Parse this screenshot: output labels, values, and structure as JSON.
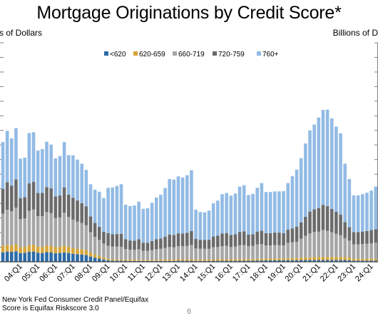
{
  "title": "Mortgage Originations by Credit Score*",
  "unit_left": "s of Dollars",
  "unit_right": "Billions of D",
  "footnotes": [
    "New York Fed Consumer Credit Panel/Equifax",
    "Score is Equifax Riskscore 3.0"
  ],
  "page_number": "6",
  "colors": {
    "lt620": "#2C6BA8",
    "s620_659": "#D4A53A",
    "s660_719": "#A6A6A6",
    "s720_759": "#6B6B6B",
    "s760plus": "#92BBE5",
    "axis": "#404040",
    "tick": "#808080"
  },
  "chart_data": {
    "type": "bar",
    "stacked": true,
    "xlabel": "",
    "ylabel": "",
    "ylim": [
      0,
      1500
    ],
    "grid": false,
    "legend_position": "top-center",
    "x_tick_labels": [
      "04:Q1",
      "05:Q1",
      "06:Q1",
      "07:Q1",
      "08:Q1",
      "09:Q1",
      "10:Q1",
      "11:Q1",
      "12:Q1",
      "13:Q1",
      "14:Q1",
      "15:Q1",
      "16:Q1",
      "17:Q1",
      "18:Q1",
      "19:Q1",
      "20:Q1",
      "21:Q1",
      "22:Q1",
      "23:Q1",
      "24:Q1"
    ],
    "categories": [
      "03:Q1",
      "03:Q2",
      "03:Q3",
      "03:Q4",
      "04:Q1",
      "04:Q2",
      "04:Q3",
      "04:Q4",
      "05:Q1",
      "05:Q2",
      "05:Q3",
      "05:Q4",
      "06:Q1",
      "06:Q2",
      "06:Q3",
      "06:Q4",
      "07:Q1",
      "07:Q2",
      "07:Q3",
      "07:Q4",
      "08:Q1",
      "08:Q2",
      "08:Q3",
      "08:Q4",
      "09:Q1",
      "09:Q2",
      "09:Q3",
      "09:Q4",
      "10:Q1",
      "10:Q2",
      "10:Q3",
      "10:Q4",
      "11:Q1",
      "11:Q2",
      "11:Q3",
      "11:Q4",
      "12:Q1",
      "12:Q2",
      "12:Q3",
      "12:Q4",
      "13:Q1",
      "13:Q2",
      "13:Q3",
      "13:Q4",
      "14:Q1",
      "14:Q2",
      "14:Q3",
      "14:Q4",
      "15:Q1",
      "15:Q2",
      "15:Q3",
      "15:Q4",
      "16:Q1",
      "16:Q2",
      "16:Q3",
      "16:Q4",
      "17:Q1",
      "17:Q2",
      "17:Q3",
      "17:Q4",
      "18:Q1",
      "18:Q2",
      "18:Q3",
      "18:Q4",
      "19:Q1",
      "19:Q2",
      "19:Q3",
      "19:Q4",
      "20:Q1",
      "20:Q2",
      "20:Q3",
      "20:Q4",
      "21:Q1",
      "21:Q2",
      "21:Q3",
      "21:Q4",
      "22:Q1",
      "22:Q2",
      "22:Q3",
      "22:Q4",
      "23:Q1",
      "23:Q2",
      "23:Q3",
      "23:Q4",
      "24:Q1",
      "24:Q2"
    ],
    "series": [
      {
        "name": "<620",
        "values": [
          65,
          70,
          68,
          72,
          60,
          62,
          68,
          70,
          62,
          60,
          66,
          64,
          58,
          60,
          64,
          60,
          55,
          52,
          50,
          46,
          36,
          28,
          22,
          16,
          10,
          8,
          8,
          7,
          7,
          6,
          6,
          6,
          5,
          5,
          6,
          6,
          6,
          6,
          6,
          6,
          7,
          7,
          7,
          7,
          6,
          6,
          6,
          6,
          7,
          7,
          7,
          7,
          7,
          7,
          8,
          8,
          8,
          8,
          9,
          9,
          10,
          10,
          10,
          10,
          10,
          11,
          11,
          11,
          12,
          12,
          12,
          12,
          12,
          12,
          12,
          12,
          12,
          12,
          12,
          11,
          8,
          8,
          8,
          8,
          8,
          8
        ]
      },
      {
        "name": "620-659",
        "values": [
          44,
          46,
          46,
          48,
          40,
          40,
          46,
          47,
          42,
          42,
          46,
          44,
          42,
          42,
          46,
          42,
          38,
          37,
          36,
          34,
          27,
          22,
          18,
          14,
          10,
          9,
          8,
          8,
          8,
          8,
          8,
          8,
          8,
          8,
          8,
          8,
          9,
          9,
          9,
          9,
          10,
          10,
          10,
          10,
          9,
          9,
          9,
          9,
          10,
          10,
          10,
          10,
          10,
          11,
          11,
          11,
          11,
          11,
          12,
          12,
          12,
          12,
          12,
          12,
          12,
          14,
          14,
          14,
          16,
          18,
          18,
          20,
          20,
          20,
          20,
          20,
          20,
          20,
          20,
          18,
          13,
          13,
          13,
          13,
          13,
          13
        ]
      },
      {
        "name": "660-719",
        "values": [
          221,
          240,
          232,
          250,
          192,
          196,
          235,
          242,
          208,
          210,
          228,
          225,
          199,
          202,
          226,
          205,
          196,
          186,
          180,
          170,
          140,
          120,
          110,
          95,
          90,
          88,
          88,
          88,
          72,
          68,
          68,
          72,
          62,
          62,
          66,
          72,
          74,
          80,
          86,
          84,
          90,
          90,
          92,
          98,
          76,
          74,
          74,
          74,
          82,
          84,
          90,
          92,
          84,
          86,
          94,
          96,
          88,
          90,
          98,
          100,
          90,
          90,
          92,
          92,
          90,
          104,
          108,
          112,
          130,
          148,
          164,
          172,
          174,
          186,
          180,
          170,
          160,
          150,
          130,
          116,
          98,
          98,
          100,
          102,
          106,
          110
        ]
      },
      {
        "name": "720-759",
        "values": [
          170,
          189,
          176,
          194,
          144,
          145,
          188,
          188,
          160,
          160,
          172,
          170,
          149,
          150,
          174,
          153,
          150,
          145,
          136,
          130,
          108,
          96,
          90,
          80,
          86,
          84,
          86,
          88,
          68,
          64,
          62,
          68,
          56,
          56,
          62,
          68,
          70,
          76,
          86,
          84,
          88,
          86,
          90,
          96,
          66,
          62,
          60,
          62,
          74,
          78,
          86,
          88,
          82,
          84,
          92,
          94,
          80,
          80,
          88,
          92,
          84,
          84,
          86,
          86,
          84,
          92,
          96,
          104,
          112,
          130,
          150,
          156,
          162,
          172,
          170,
          160,
          150,
          142,
          110,
          92,
          84,
          84,
          86,
          88,
          90,
          92
        ]
      },
      {
        "name": "760+",
        "values": [
          320,
          352,
          324,
          352,
          270,
          270,
          345,
          340,
          290,
          300,
          310,
          300,
          260,
          270,
          310,
          270,
          290,
          280,
          270,
          250,
          220,
          228,
          240,
          232,
          310,
          320,
          330,
          340,
          236,
          236,
          242,
          258,
          232,
          236,
          262,
          286,
          300,
          334,
          380,
          380,
          390,
          384,
          394,
          416,
          200,
          190,
          190,
          200,
          228,
          240,
          270,
          274,
          270,
          280,
          310,
          316,
          270,
          276,
          300,
          326,
          282,
          282,
          282,
          282,
          288,
          318,
          358,
          390,
          440,
          502,
          556,
          580,
          620,
          650,
          660,
          620,
          584,
          556,
          400,
          330,
          252,
          252,
          256,
          262,
          270,
          292
        ]
      }
    ]
  }
}
